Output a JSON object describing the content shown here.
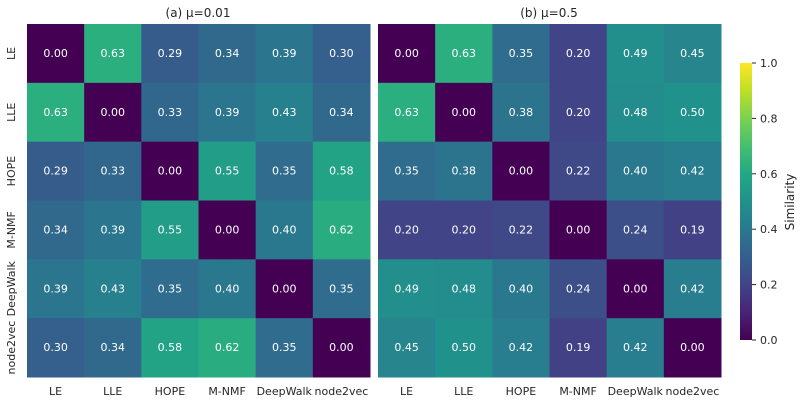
{
  "chart_data": [
    {
      "type": "heatmap",
      "title": "(a) μ=0.01",
      "x_categories": [
        "LE",
        "LLE",
        "HOPE",
        "M-NMF",
        "DeepWalk",
        "node2vec"
      ],
      "y_categories": [
        "LE",
        "LLE",
        "HOPE",
        "M-NMF",
        "DeepWalk",
        "node2vec"
      ],
      "values": [
        [
          0.0,
          0.63,
          0.29,
          0.34,
          0.39,
          0.3
        ],
        [
          0.63,
          0.0,
          0.33,
          0.39,
          0.43,
          0.34
        ],
        [
          0.29,
          0.33,
          0.0,
          0.55,
          0.35,
          0.58
        ],
        [
          0.34,
          0.39,
          0.55,
          0.0,
          0.4,
          0.62
        ],
        [
          0.39,
          0.43,
          0.35,
          0.4,
          0.0,
          0.35
        ],
        [
          0.3,
          0.34,
          0.58,
          0.62,
          0.35,
          0.0
        ]
      ],
      "value_labels": [
        [
          "0.00",
          "0.63",
          "0.29",
          "0.34",
          "0.39",
          "0.30"
        ],
        [
          "0.63",
          "0.00",
          "0.33",
          "0.39",
          "0.43",
          "0.34"
        ],
        [
          "0.29",
          "0.33",
          "0.00",
          "0.55",
          "0.35",
          "0.58"
        ],
        [
          "0.34",
          "0.39",
          "0.55",
          "0.00",
          "0.40",
          "0.62"
        ],
        [
          "0.39",
          "0.43",
          "0.35",
          "0.40",
          "0.00",
          "0.35"
        ],
        [
          "0.30",
          "0.34",
          "0.58",
          "0.62",
          "0.35",
          "0.00"
        ]
      ]
    },
    {
      "type": "heatmap",
      "title": "(b) μ=0.5",
      "x_categories": [
        "LE",
        "LLE",
        "HOPE",
        "M-NMF",
        "DeepWalk",
        "node2vec"
      ],
      "y_categories": [
        "LE",
        "LLE",
        "HOPE",
        "M-NMF",
        "DeepWalk",
        "node2vec"
      ],
      "values": [
        [
          0.0,
          0.63,
          0.35,
          0.2,
          0.49,
          0.45
        ],
        [
          0.63,
          0.0,
          0.38,
          0.2,
          0.48,
          0.5
        ],
        [
          0.35,
          0.38,
          0.0,
          0.22,
          0.4,
          0.42
        ],
        [
          0.2,
          0.2,
          0.22,
          0.0,
          0.24,
          0.19
        ],
        [
          0.49,
          0.48,
          0.4,
          0.24,
          0.0,
          0.42
        ],
        [
          0.45,
          0.5,
          0.42,
          0.19,
          0.42,
          0.0
        ]
      ],
      "value_labels": [
        [
          "0.00",
          "0.63",
          "0.35",
          "0.20",
          "0.49",
          "0.45"
        ],
        [
          "0.63",
          "0.00",
          "0.38",
          "0.20",
          "0.48",
          "0.50"
        ],
        [
          "0.35",
          "0.38",
          "0.00",
          "0.22",
          "0.40",
          "0.42"
        ],
        [
          "0.20",
          "0.20",
          "0.22",
          "0.00",
          "0.24",
          "0.19"
        ],
        [
          "0.49",
          "0.48",
          "0.40",
          "0.24",
          "0.00",
          "0.42"
        ],
        [
          "0.45",
          "0.50",
          "0.42",
          "0.19",
          "0.42",
          "0.00"
        ]
      ]
    }
  ],
  "colorbar": {
    "label": "Similarity",
    "range": [
      0.0,
      1.0
    ],
    "ticks": [
      0.0,
      0.2,
      0.4,
      0.6,
      0.8,
      1.0
    ],
    "tick_labels": [
      "0.0",
      "0.2",
      "0.4",
      "0.6",
      "0.8",
      "1.0"
    ],
    "colormap": "viridis"
  }
}
